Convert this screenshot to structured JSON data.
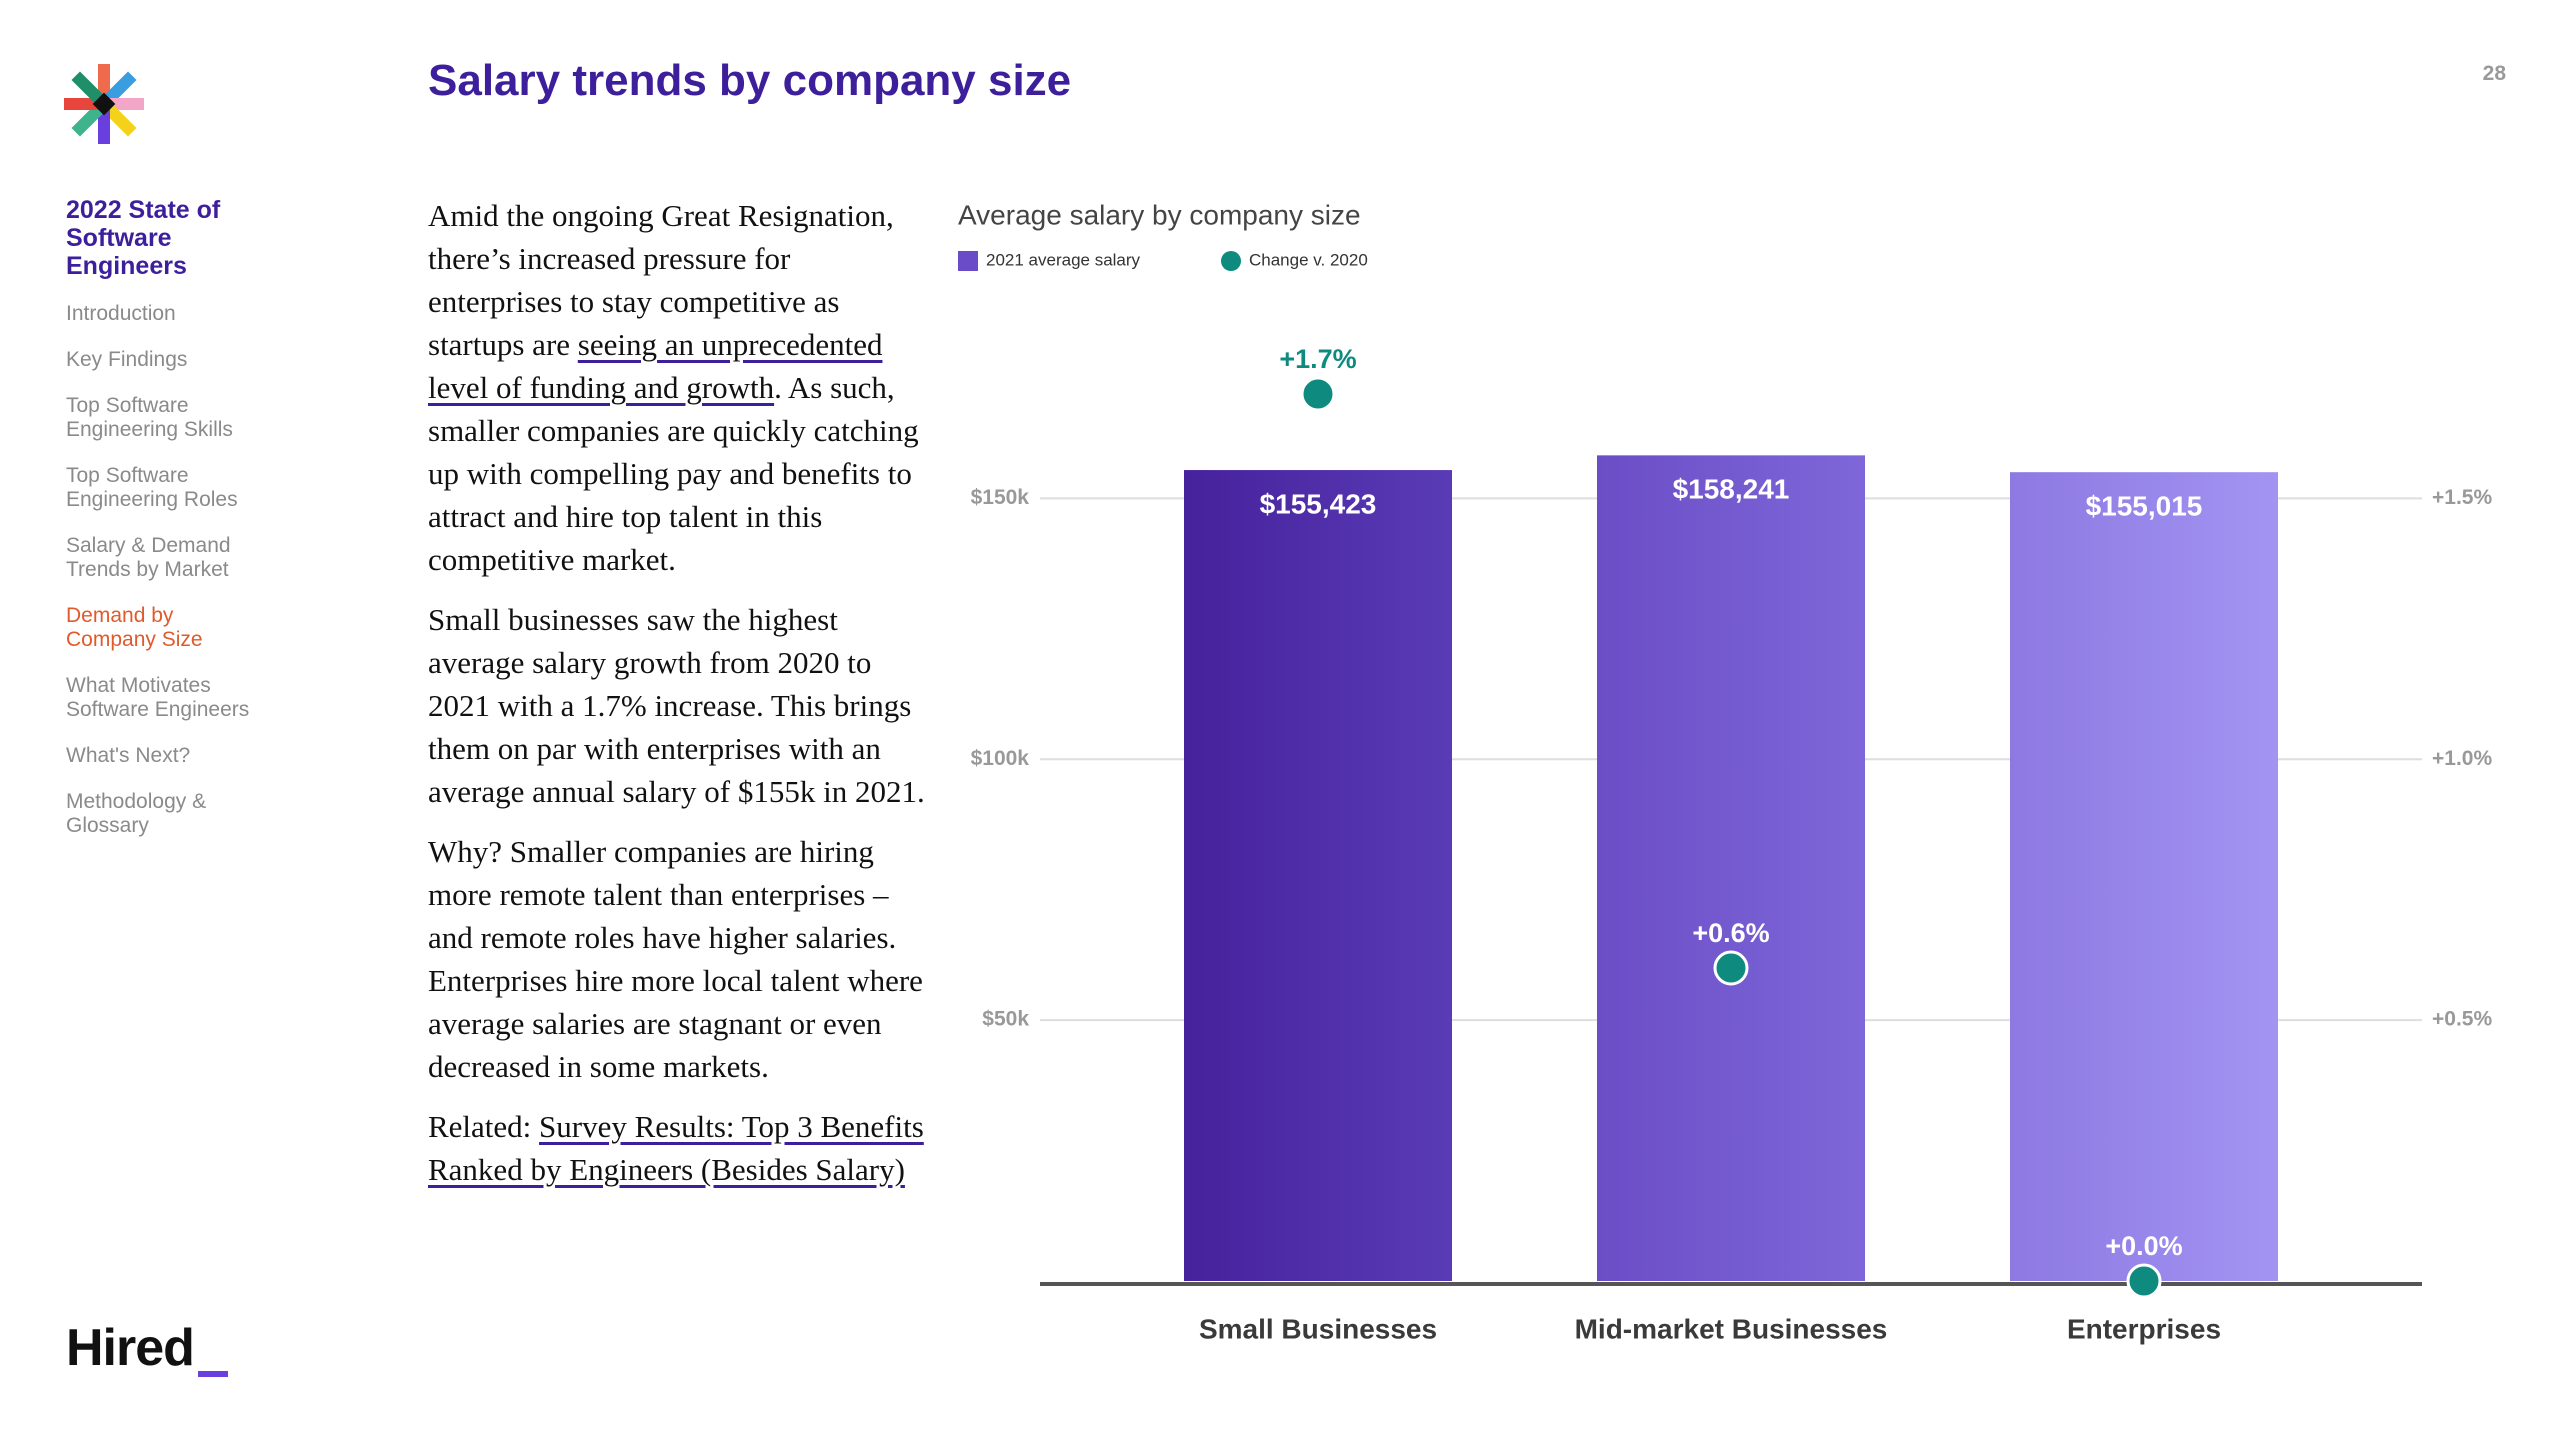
{
  "page_number": "28",
  "title": "Salary trends by company size",
  "nav": {
    "heading": "2022 State of Software Engineers",
    "items": [
      "Introduction",
      "Key Findings",
      "Top Software Engineering Skills",
      "Top Software Engineering Roles",
      "Salary & Demand Trends by Market",
      "Demand by Company Size",
      "What Motivates Software Engineers",
      "What's Next?",
      "Methodology & Glossary"
    ],
    "active": 5
  },
  "brand": "Hired",
  "body": [
    [
      {
        "text": "Amid the ongoing Great Resignation, there’s increased pressure for enterprises to stay competitive as startups are "
      },
      {
        "text": "seeing an unprecedented level of funding and growth",
        "link": true
      },
      {
        "text": ". As such, smaller companies are quickly catching up with compelling pay and benefits to attract and hire top talent in this competitive market."
      }
    ],
    [
      {
        "text": "Small businesses saw the highest average salary growth from 2020 to 2021 with a 1.7% increase. This brings them on par with enterprises with an average annual salary of $155k in 2021."
      }
    ],
    [
      {
        "text": "Why? Smaller companies are hiring more remote talent than enterprises – and remote roles have higher salaries. Enterprises hire more local talent where average salaries are stagnant or even decreased in some markets."
      }
    ],
    [
      {
        "text": "Related: "
      },
      {
        "text": "Survey Results: Top 3 Benefits Ranked by Engineers (Besides Salary)",
        "link": true
      }
    ]
  ],
  "chart_data": {
    "type": "bar",
    "title": "Average salary by company size",
    "categories": [
      "Small Businesses",
      "Mid-market Businesses",
      "Enterprises"
    ],
    "series": [
      {
        "name": "2021 average salary",
        "type": "bar",
        "color": "#6a4cc8",
        "colors": [
          [
            "#46229c",
            "#5a3bb6"
          ],
          [
            "#6b4dc6",
            "#7e67d9"
          ],
          [
            "#8d79e2",
            "#a394f2"
          ]
        ],
        "values": [
          155423,
          158241,
          155015
        ],
        "value_labels": [
          "$155,423",
          "$158,241",
          "$155,015"
        ]
      },
      {
        "name": "Change v. 2020",
        "type": "dot",
        "color": "#0f8a7e",
        "axis": "y2",
        "values": [
          1.7,
          0.6,
          0.0
        ],
        "value_labels": [
          "+1.7%",
          "+0.6%",
          "+0.0%"
        ]
      }
    ],
    "ylim": [
      0,
      170000
    ],
    "yticks": [
      {
        "value": 50000,
        "label": "$50k"
      },
      {
        "value": 100000,
        "label": "$100k"
      },
      {
        "value": 150000,
        "label": "$150k"
      }
    ],
    "y2lim": [
      0,
      1.7
    ],
    "y2ticks": [
      {
        "value": 0.5,
        "label": "+0.5%"
      },
      {
        "value": 1.0,
        "label": "+1.0%"
      },
      {
        "value": 1.5,
        "label": "+1.5%"
      }
    ],
    "grid": true
  }
}
